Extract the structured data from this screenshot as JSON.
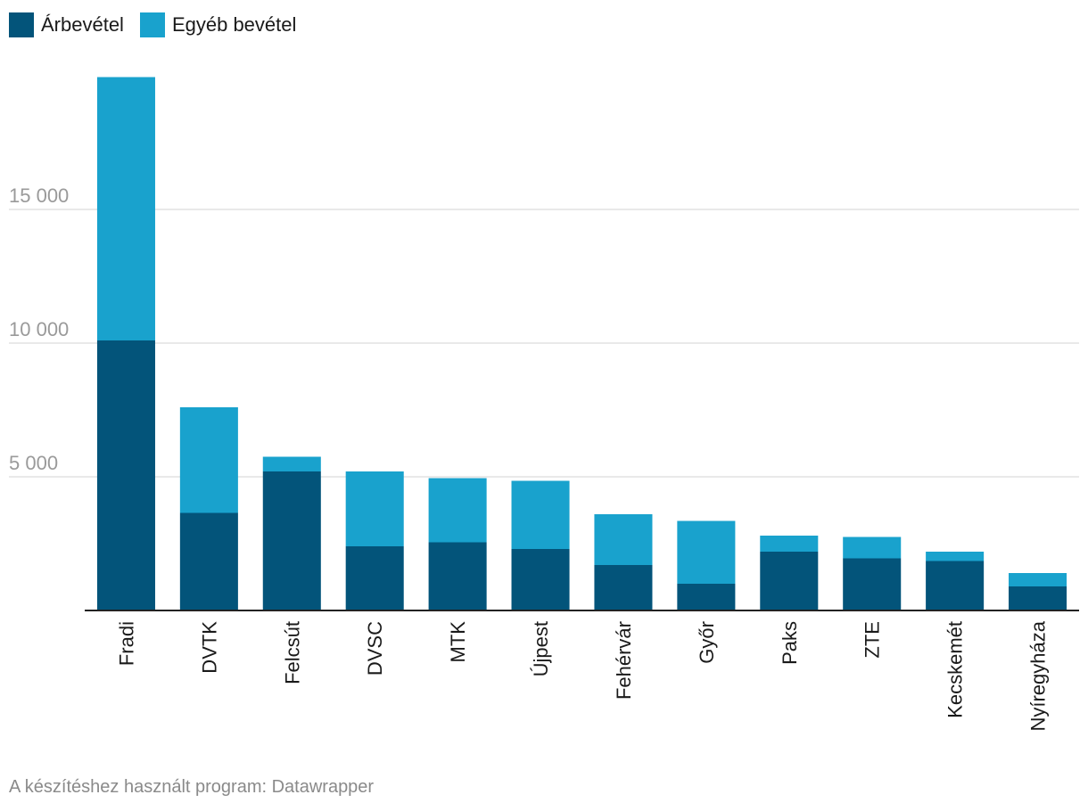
{
  "chart_data": {
    "type": "bar",
    "stacked": true,
    "categories": [
      "Fradi",
      "DVTK",
      "Felcsút",
      "DVSC",
      "MTK",
      "Újpest",
      "Fehérvár",
      "Győr",
      "Paks",
      "ZTE",
      "Kecskemét",
      "Nyíregyháza"
    ],
    "series": [
      {
        "name": "Árbevétel",
        "color": "#03547a",
        "values": [
          10100,
          3650,
          5200,
          2400,
          2550,
          2300,
          1700,
          1000,
          2200,
          1950,
          1850,
          900
        ]
      },
      {
        "name": "Egyéb bevétel",
        "color": "#19a2cd",
        "values": [
          9850,
          3950,
          550,
          2800,
          2400,
          2550,
          1900,
          2350,
          600,
          800,
          350,
          500
        ]
      }
    ],
    "y_ticks": [
      5000,
      10000,
      15000
    ],
    "y_tick_labels": [
      "5 000",
      "10 000",
      "15 000"
    ],
    "ylim": [
      0,
      20000
    ],
    "grid": true,
    "legend_position": "top-left",
    "gridline_color": "#e2e2e2",
    "axis_color": "#222222"
  },
  "footer": {
    "text": "A készítéshez használt program: Datawrapper"
  }
}
